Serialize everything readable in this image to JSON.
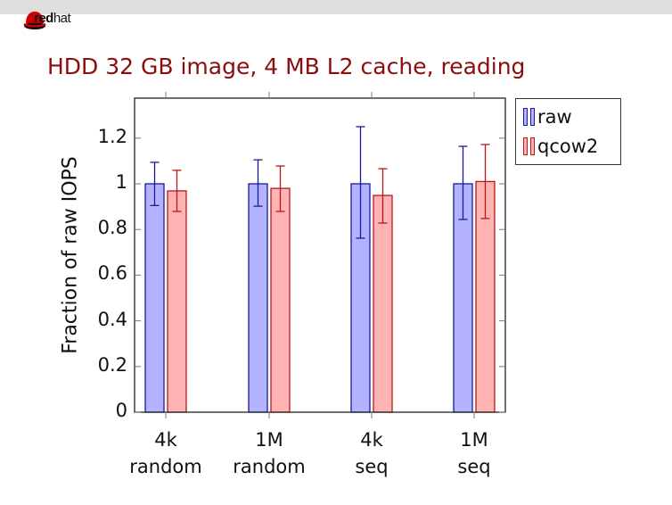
{
  "header": {
    "logo_text_bold": "red",
    "logo_text_light": "hat"
  },
  "slide": {
    "title": "HDD 32 GB image, 4 MB L2 cache, reading"
  },
  "colors": {
    "raw_fill": "#b3b3ff",
    "raw_stroke": "#1a1a99",
    "qcow2_fill": "#ffb3b3",
    "qcow2_stroke": "#b31a1a",
    "title": "#8b0d0d"
  },
  "chart_data": {
    "type": "bar",
    "title": "HDD 32 GB image, 4 MB L2 cache, reading",
    "xlabel": "",
    "ylabel": "Fraction of raw IOPS",
    "ylim": [
      0,
      1.375
    ],
    "yticks": [
      0,
      0.2,
      0.4,
      0.6,
      0.8,
      1,
      1.2
    ],
    "ytick_labels": [
      "0",
      "0.2",
      "0.4",
      "0.6",
      "0.8",
      "1",
      "1.2"
    ],
    "categories": [
      "4k random",
      "1M random",
      "4k seq",
      "1M seq"
    ],
    "category_lines": [
      [
        "4k",
        "random"
      ],
      [
        "1M",
        "random"
      ],
      [
        "4k",
        "seq"
      ],
      [
        "1M",
        "seq"
      ]
    ],
    "series": [
      {
        "name": "raw",
        "values": [
          1.0,
          1.0,
          1.0,
          1.0
        ],
        "error_high": [
          1.094,
          1.105,
          1.25,
          1.164
        ],
        "error_low": [
          0.905,
          0.902,
          0.762,
          0.844
        ]
      },
      {
        "name": "qcow2",
        "values": [
          0.969,
          0.98,
          0.949,
          1.01
        ],
        "error_high": [
          1.059,
          1.078,
          1.066,
          1.172
        ],
        "error_low": [
          0.879,
          0.879,
          0.828,
          0.848
        ]
      }
    ],
    "legend": [
      "raw",
      "qcow2"
    ],
    "legend_position": "outside right top",
    "grid": false
  }
}
